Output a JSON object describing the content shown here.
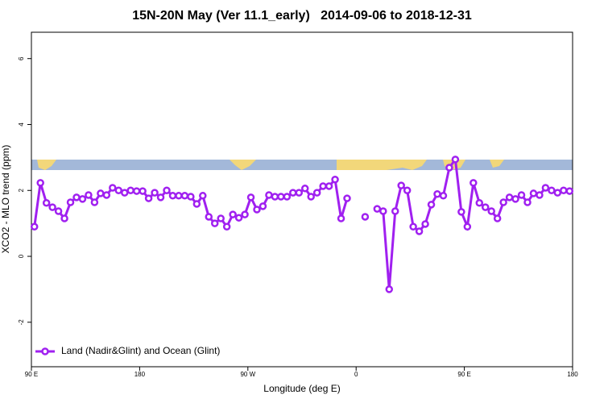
{
  "chart_data": {
    "type": "line",
    "title": "15N-20N May (Ver 11.1_early)   2014-09-06 to 2018-12-31",
    "x_label": "Longitude (deg E)",
    "y_label": "XCO2 - MLO trend (ppm)",
    "x": [
      92.5,
      97.5,
      102.5,
      107.5,
      112.5,
      117.5,
      122.5,
      127.5,
      132.5,
      137.5,
      142.5,
      147.5,
      152.5,
      157.5,
      162.5,
      167.5,
      172.5,
      177.5,
      182.5,
      187.5,
      192.5,
      197.5,
      202.5,
      207.5,
      212.5,
      217.5,
      222.5,
      227.5,
      232.5,
      237.5,
      242.5,
      247.5,
      252.5,
      257.5,
      262.5,
      267.5,
      272.5,
      277.5,
      282.5,
      287.5,
      292.5,
      297.5,
      302.5,
      307.5,
      312.5,
      317.5,
      322.5,
      327.5,
      332.5,
      337.5,
      342.5,
      347.5,
      352.5,
      357.5,
      362.5,
      367.5,
      372.5,
      377.5,
      382.5,
      387.5,
      392.5,
      397.5,
      402.5,
      407.5,
      412.5,
      417.5,
      422.5,
      427.5,
      432.5,
      437.5,
      442.5,
      447.5,
      452.5,
      457.5,
      462.5,
      467.5,
      472.5,
      477.5,
      482.5,
      487.5,
      492.5,
      497.5,
      502.5,
      507.5,
      512.5,
      517.5,
      522.5,
      527.5,
      532.5,
      537.5
    ],
    "series": [
      {
        "name": "Land (Nadir&Glint) and Ocean (Glint)",
        "color": "#a020f0",
        "values": [
          0.9,
          2.23,
          1.62,
          1.49,
          1.37,
          1.15,
          1.64,
          1.79,
          1.74,
          1.86,
          1.64,
          1.91,
          1.86,
          2.08,
          2.0,
          1.93,
          2.0,
          1.98,
          1.98,
          1.76,
          1.93,
          1.79,
          2.0,
          1.84,
          1.84,
          1.84,
          1.81,
          1.59,
          1.84,
          1.2,
          1.0,
          1.15,
          0.9,
          1.27,
          1.17,
          1.27,
          1.79,
          1.42,
          1.52,
          1.86,
          1.81,
          1.81,
          1.81,
          1.93,
          1.93,
          2.06,
          1.81,
          1.93,
          2.13,
          2.13,
          2.33,
          1.15,
          1.76,
          null,
          null,
          1.2,
          null,
          1.44,
          1.37,
          -1.0,
          1.37,
          2.15,
          2.0,
          0.9,
          0.76,
          0.98,
          1.57,
          1.89,
          1.84,
          2.69,
          2.94,
          1.35,
          0.9,
          2.23,
          1.62,
          1.49,
          1.37,
          1.15,
          1.64,
          1.79,
          1.74,
          1.86,
          1.64,
          1.91,
          1.86,
          2.08,
          2.0,
          1.93,
          2.0,
          1.98
        ]
      }
    ],
    "xlim": [
      90,
      540
    ],
    "ylim": [
      -3.35,
      6.8
    ],
    "xticks": [
      {
        "value": 90,
        "label": "90 E"
      },
      180,
      {
        "value": 270,
        "label": "90 W"
      },
      {
        "value": 360,
        "label": "0"
      },
      {
        "value": 450,
        "label": "90 E"
      },
      {
        "value": 540,
        "label": "180"
      }
    ],
    "yticks": [
      -2,
      0,
      2,
      4,
      6
    ],
    "legend": "bottom-left"
  }
}
